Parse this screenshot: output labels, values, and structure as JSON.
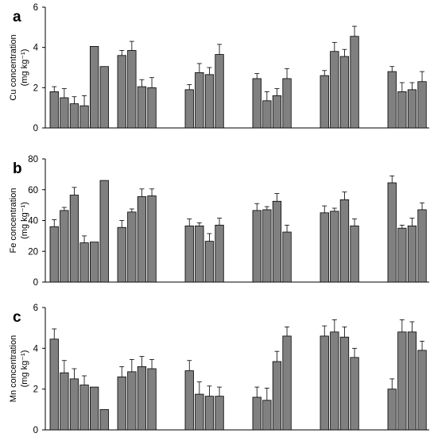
{
  "colors": {
    "bar": "#808080",
    "bar_stroke": "#000000",
    "axis": "#000000"
  },
  "chart_data": [
    {
      "type": "bar",
      "panel_label": "a",
      "ylabel_line1": "Cu concentration",
      "ylabel_line2": "(mg kg⁻¹)",
      "ylim": [
        0,
        6
      ],
      "yticks": [
        "0",
        "2",
        "4",
        "6"
      ],
      "groups": [
        {
          "values": [
            1.8,
            1.5,
            1.2,
            1.1,
            4.05,
            3.05
          ],
          "errors": [
            0.25,
            0.45,
            0.35,
            0.5,
            0,
            0
          ]
        },
        {
          "values": [
            3.6,
            3.85,
            2.05,
            2.0
          ],
          "errors": [
            0.25,
            0.45,
            0.35,
            0.5
          ]
        },
        {
          "values": [
            1.9,
            2.75,
            2.65,
            3.65
          ],
          "errors": [
            0.25,
            0.45,
            0.35,
            0.5
          ]
        },
        {
          "values": [
            2.45,
            1.35,
            1.6,
            2.45
          ],
          "errors": [
            0.25,
            0.45,
            0.35,
            0.5
          ]
        },
        {
          "values": [
            2.6,
            3.8,
            3.55,
            4.55
          ],
          "errors": [
            0.25,
            0.45,
            0.35,
            0.5
          ]
        },
        {
          "values": [
            2.8,
            1.8,
            1.9,
            2.3
          ],
          "errors": [
            0.25,
            0.45,
            0.35,
            0.5
          ]
        }
      ]
    },
    {
      "type": "bar",
      "panel_label": "b",
      "ylabel_line1": "Fe concentration",
      "ylabel_line2": "(mg kg⁻¹)",
      "ylim": [
        0,
        80
      ],
      "yticks": [
        "0",
        "20",
        "40",
        "60",
        "80"
      ],
      "groups": [
        {
          "values": [
            36,
            46.5,
            56.5,
            25.5,
            26,
            66
          ],
          "errors": [
            4.5,
            2,
            5,
            4.5,
            0,
            0
          ]
        },
        {
          "values": [
            35.5,
            45.5,
            55.5,
            56
          ],
          "errors": [
            4.5,
            2,
            5,
            4.5
          ]
        },
        {
          "values": [
            36.5,
            36.5,
            26.5,
            37
          ],
          "errors": [
            4.5,
            2,
            5,
            4.5
          ]
        },
        {
          "values": [
            46.5,
            47,
            52.5,
            32.5
          ],
          "errors": [
            4.5,
            2,
            5,
            4.5
          ]
        },
        {
          "values": [
            45,
            46,
            53.5,
            36.5
          ],
          "errors": [
            4.5,
            2,
            5,
            4.5
          ]
        },
        {
          "values": [
            64.5,
            35,
            36.5,
            47
          ],
          "errors": [
            4.5,
            2,
            5,
            4.5
          ]
        }
      ]
    },
    {
      "type": "bar",
      "panel_label": "c",
      "ylabel_line1": "Mn concentration",
      "ylabel_line2": "(mg kg⁻¹)",
      "ylim": [
        0,
        6
      ],
      "yticks": [
        "0",
        "2",
        "4",
        "6"
      ],
      "groups": [
        {
          "values": [
            4.45,
            2.8,
            2.5,
            2.2,
            2.1,
            1.0
          ],
          "errors": [
            0.5,
            0.6,
            0.5,
            0.45,
            0,
            0
          ]
        },
        {
          "values": [
            2.6,
            2.85,
            3.1,
            3.0
          ],
          "errors": [
            0.5,
            0.6,
            0.5,
            0.45
          ]
        },
        {
          "values": [
            2.9,
            1.75,
            1.65,
            1.65
          ],
          "errors": [
            0.5,
            0.6,
            0.5,
            0.45
          ]
        },
        {
          "values": [
            1.6,
            1.45,
            3.35,
            4.6
          ],
          "errors": [
            0.5,
            0.6,
            0.5,
            0.45
          ]
        },
        {
          "values": [
            4.6,
            4.8,
            4.55,
            3.55
          ],
          "errors": [
            0.5,
            0.6,
            0.5,
            0.45
          ]
        },
        {
          "values": [
            2.0,
            4.8,
            4.8,
            3.9
          ],
          "errors": [
            0.5,
            0.6,
            0.5,
            0.45
          ]
        }
      ]
    }
  ]
}
